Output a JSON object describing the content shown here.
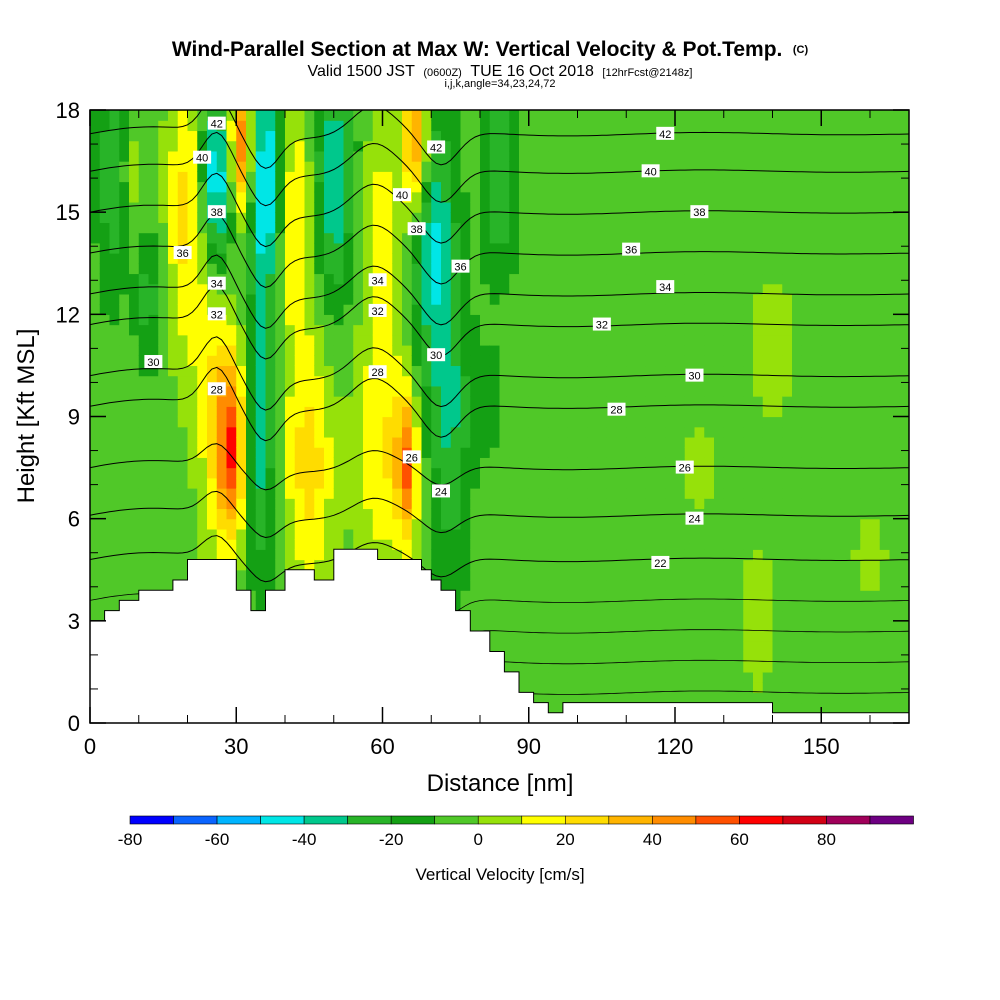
{
  "title": {
    "main": "Wind-Parallel Section at Max W: Vertical Velocity & Pot.Temp.",
    "main_suffix": "(C)",
    "line2_a": "Valid 1500 JST",
    "line2_b": "(0600Z)",
    "line2_c": "TUE 16 Oct 2018",
    "line2_d": "[12hrFcst@2148z]",
    "line3": "i,j,k,angle=34,23,24,72"
  },
  "chart_data": {
    "type": "heatmap",
    "xlabel": "Distance [nm]",
    "ylabel": "Height [Kft MSL]",
    "xlim": [
      0,
      168
    ],
    "ylim": [
      0,
      18
    ],
    "xticks": [
      0,
      30,
      60,
      90,
      120,
      150
    ],
    "yticks": [
      0,
      3,
      6,
      9,
      12,
      15,
      18
    ],
    "x_tick_labels": [
      "0",
      "30",
      "60",
      "90",
      "120",
      "150"
    ],
    "y_tick_labels": [
      "0",
      "3",
      "6",
      "9",
      "12",
      "15",
      "18"
    ],
    "colorbar": {
      "label": "Vertical Velocity [cm/s]",
      "range": [
        -80,
        90
      ],
      "step": 10,
      "tick_values": [
        -80,
        -60,
        -40,
        -20,
        0,
        20,
        40,
        60,
        80
      ],
      "tick_labels": [
        "-80",
        "-60",
        "-40",
        "-20",
        "0",
        "20",
        "40",
        "60",
        "80"
      ],
      "colors": [
        "#0000ff",
        "#0a64ff",
        "#00b4ff",
        "#00e6e6",
        "#00c88c",
        "#28b428",
        "#14a014",
        "#50c828",
        "#96e10a",
        "#ffff00",
        "#ffdc00",
        "#ffb400",
        "#ff8c00",
        "#ff5000",
        "#ff0000",
        "#d20014",
        "#a0005a",
        "#6e0082"
      ]
    },
    "terrain_profile": {
      "x": [
        0,
        3,
        3,
        6,
        6,
        10,
        10,
        17,
        17,
        20,
        20,
        30,
        30,
        33,
        33,
        36,
        36,
        40,
        40,
        46,
        46,
        50,
        50,
        59,
        59,
        68,
        68,
        70,
        70,
        72,
        72,
        75,
        75,
        78,
        78,
        82,
        82,
        85,
        85,
        88,
        88,
        91,
        91,
        94,
        94,
        97,
        97,
        140,
        140,
        148,
        148,
        168
      ],
      "y": [
        3.0,
        3.0,
        3.3,
        3.3,
        3.6,
        3.6,
        3.9,
        3.9,
        4.2,
        4.2,
        4.8,
        4.8,
        3.9,
        3.9,
        3.3,
        3.3,
        3.9,
        3.9,
        4.5,
        4.5,
        4.2,
        4.2,
        5.1,
        5.1,
        4.8,
        4.8,
        4.5,
        4.5,
        4.2,
        4.2,
        3.9,
        3.9,
        3.3,
        3.3,
        2.7,
        2.7,
        2.1,
        2.1,
        1.5,
        1.5,
        0.9,
        0.9,
        0.6,
        0.6,
        0.3,
        0.3,
        0.6,
        0.6,
        0.3,
        0.3,
        0.3,
        0.3
      ]
    },
    "w_field_centers": [
      {
        "x": 5,
        "y": 16.0,
        "w": -25,
        "sx": 2.5,
        "sy": 2.5
      },
      {
        "x": 12,
        "y": 12.5,
        "w": -20,
        "sx": 2.0,
        "sy": 1.5
      },
      {
        "x": 8,
        "y": 16.0,
        "w": 15,
        "sx": 2.0,
        "sy": 2.0
      },
      {
        "x": 20,
        "y": 15.0,
        "w": 30,
        "sx": 3.0,
        "sy": 3.0
      },
      {
        "x": 26,
        "y": 16.0,
        "w": -50,
        "sx": 2.5,
        "sy": 2.0
      },
      {
        "x": 31,
        "y": 17.0,
        "w": 60,
        "sx": 2.0,
        "sy": 1.5
      },
      {
        "x": 36,
        "y": 16.0,
        "w": -50,
        "sx": 2.5,
        "sy": 2.5
      },
      {
        "x": 42,
        "y": 15.0,
        "w": 25,
        "sx": 3.0,
        "sy": 3.0
      },
      {
        "x": 50,
        "y": 16.0,
        "w": -35,
        "sx": 3.0,
        "sy": 2.5
      },
      {
        "x": 60,
        "y": 14.5,
        "w": 20,
        "sx": 3.0,
        "sy": 2.5
      },
      {
        "x": 67,
        "y": 17.0,
        "w": 55,
        "sx": 2.0,
        "sy": 1.5
      },
      {
        "x": 70,
        "y": 14.5,
        "w": -35,
        "sx": 3.0,
        "sy": 3.0
      },
      {
        "x": 84,
        "y": 16.0,
        "w": -25,
        "sx": 2.5,
        "sy": 2.0
      },
      {
        "x": 29,
        "y": 8.0,
        "w": 55,
        "sx": 2.0,
        "sy": 1.8
      },
      {
        "x": 26,
        "y": 9.5,
        "w": 25,
        "sx": 3.0,
        "sy": 3.0
      },
      {
        "x": 35,
        "y": 8.5,
        "w": -30,
        "sx": 2.0,
        "sy": 3.0
      },
      {
        "x": 45,
        "y": 7.5,
        "w": 30,
        "sx": 3.5,
        "sy": 2.5
      },
      {
        "x": 60,
        "y": 8.0,
        "w": 25,
        "sx": 4.0,
        "sy": 2.5
      },
      {
        "x": 65,
        "y": 7.5,
        "w": 50,
        "sx": 1.5,
        "sy": 1.5
      },
      {
        "x": 74,
        "y": 9.0,
        "w": -25,
        "sx": 3.0,
        "sy": 3.5
      },
      {
        "x": 82,
        "y": 9.5,
        "w": -20,
        "sx": 1.0,
        "sy": 1.0
      },
      {
        "x": 137,
        "y": 3.0,
        "w": 15,
        "sx": 2.0,
        "sy": 1.5
      },
      {
        "x": 125,
        "y": 7.5,
        "w": 8,
        "sx": 3.0,
        "sy": 1.2
      },
      {
        "x": 140,
        "y": 11.0,
        "w": 8,
        "sx": 5.0,
        "sy": 2.0
      },
      {
        "x": 160,
        "y": 5.0,
        "w": 6,
        "sx": 5.0,
        "sy": 2.0
      },
      {
        "x": 100,
        "y": 2.5,
        "w": 4,
        "sx": 10.0,
        "sy": 2.5
      }
    ],
    "w_background": -5,
    "isentropes": {
      "levels": [
        22,
        24,
        26,
        28,
        30,
        32,
        34,
        36,
        38,
        40,
        42
      ],
      "far_field_heights_kft": [
        4.8,
        6.1,
        7.5,
        9.3,
        10.2,
        11.7,
        12.6,
        13.8,
        15.0,
        16.2,
        17.3
      ],
      "labels": [
        {
          "value": "22",
          "x": 117,
          "y": 4.7
        },
        {
          "value": "24",
          "x": 124,
          "y": 6.0
        },
        {
          "value": "26",
          "x": 122,
          "y": 7.5
        },
        {
          "value": "28",
          "x": 108,
          "y": 9.2
        },
        {
          "value": "28",
          "x": 59,
          "y": 10.3
        },
        {
          "value": "28",
          "x": 26,
          "y": 9.8
        },
        {
          "value": "30",
          "x": 124,
          "y": 10.2
        },
        {
          "value": "30",
          "x": 13,
          "y": 10.6
        },
        {
          "value": "30",
          "x": 71,
          "y": 10.8
        },
        {
          "value": "32",
          "x": 105,
          "y": 11.7
        },
        {
          "value": "32",
          "x": 59,
          "y": 12.1
        },
        {
          "value": "32",
          "x": 26,
          "y": 12.0
        },
        {
          "value": "34",
          "x": 118,
          "y": 12.8
        },
        {
          "value": "34",
          "x": 59,
          "y": 13.0
        },
        {
          "value": "34",
          "x": 26,
          "y": 12.9
        },
        {
          "value": "36",
          "x": 111,
          "y": 13.9
        },
        {
          "value": "36",
          "x": 76,
          "y": 13.4
        },
        {
          "value": "36",
          "x": 19,
          "y": 13.8
        },
        {
          "value": "38",
          "x": 125,
          "y": 15.0
        },
        {
          "value": "38",
          "x": 67,
          "y": 14.5
        },
        {
          "value": "38",
          "x": 26,
          "y": 15.0
        },
        {
          "value": "40",
          "x": 115,
          "y": 16.2
        },
        {
          "value": "40",
          "x": 64,
          "y": 15.5
        },
        {
          "value": "40",
          "x": 23,
          "y": 16.6
        },
        {
          "value": "42",
          "x": 118,
          "y": 17.3
        },
        {
          "value": "42",
          "x": 71,
          "y": 16.9
        },
        {
          "value": "42",
          "x": 26,
          "y": 17.6
        },
        {
          "value": "24",
          "x": 72,
          "y": 6.8
        },
        {
          "value": "26",
          "x": 66,
          "y": 7.8
        }
      ]
    }
  }
}
